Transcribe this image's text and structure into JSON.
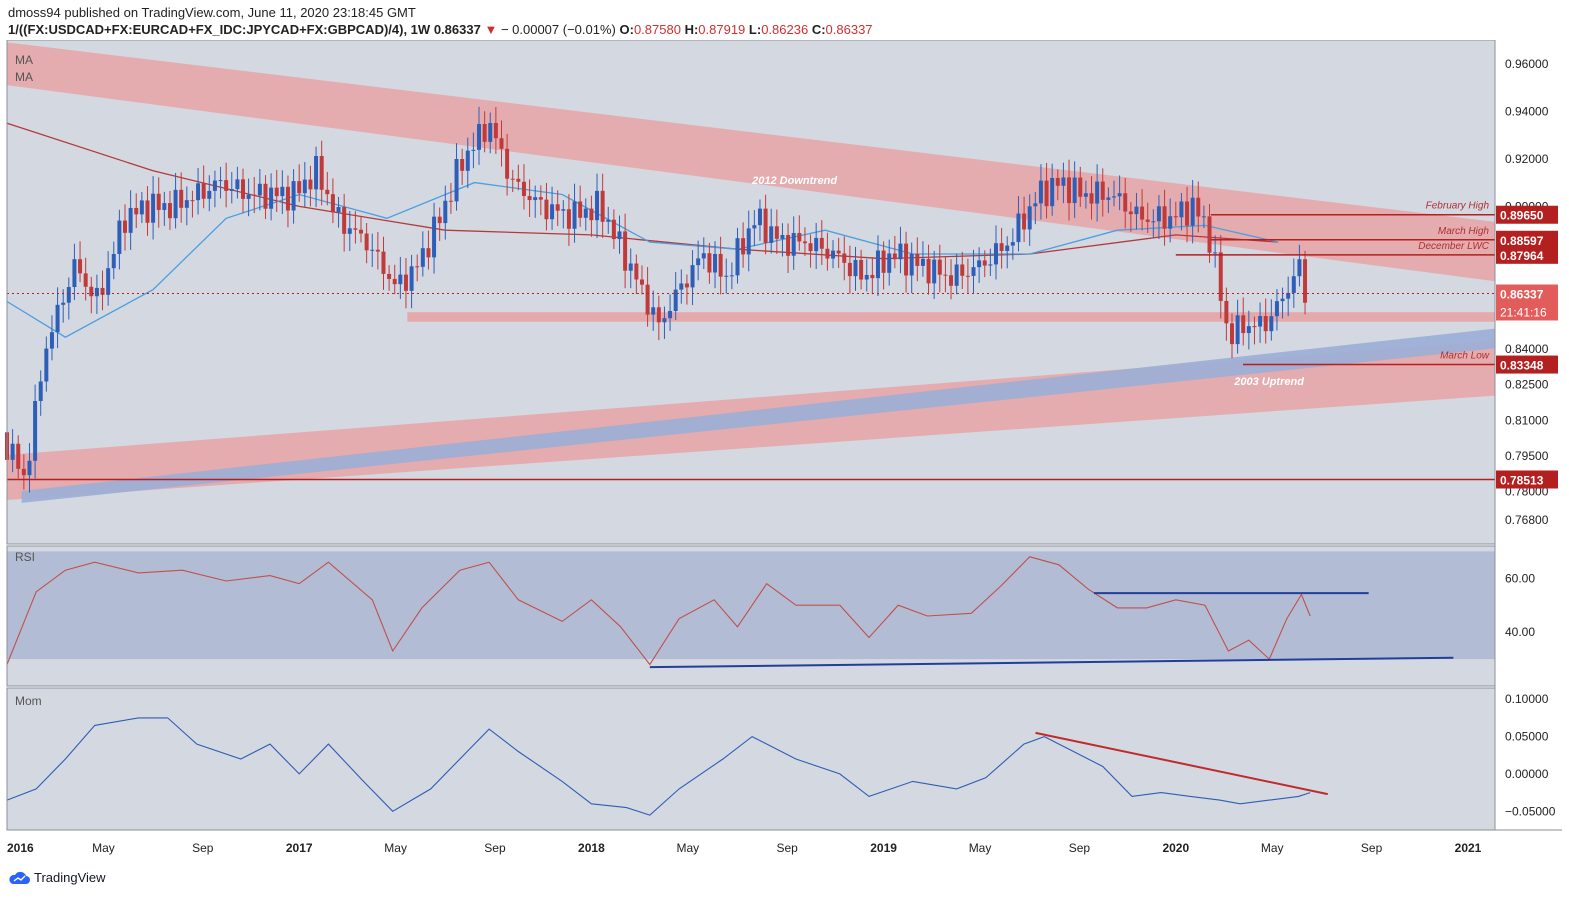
{
  "header": {
    "published": "dmoss94 published on TradingView.com, June 11, 2020 23:18:45 GMT",
    "symbol": "1/((FX:USDCAD+FX:EURCAD+FX_IDC:JPYCAD+FX:GBPCAD)/4), 1W",
    "last": "0.86337",
    "change": "− 0.00007 (−0.01%)",
    "o_label": "O:",
    "o_val": "0.87580",
    "h_label": "H:",
    "h_val": "0.87919",
    "l_label": "L:",
    "l_val": "0.86236",
    "c_label": "C:",
    "c_val": "0.86337"
  },
  "footer": {
    "brand": "TradingView"
  },
  "colors": {
    "bg": "#d4d8e1",
    "up": "#2e5fb8",
    "down": "#c13a3a",
    "ma200": "#b33a3a",
    "ma50": "#4a9fe0",
    "channel": "#e6a4a4",
    "uptrend_band": "#9aaed6",
    "level_line": "#b41f1f",
    "rsi": "#c0504d",
    "mom": "#2f5db5"
  },
  "chart_data": [
    {
      "type": "candlestick",
      "title": "",
      "ma_labels": [
        "MA",
        "MA"
      ],
      "x_ticks": [
        "2016",
        "May",
        "Sep",
        "2017",
        "May",
        "Sep",
        "2018",
        "May",
        "Sep",
        "2019",
        "May",
        "Sep",
        "2020",
        "May",
        "Sep",
        "2021"
      ],
      "y_ticks": [
        "0.96000",
        "0.94000",
        "0.92000",
        "0.90000",
        "0.88000",
        "0.86000",
        "0.84000",
        "0.82500",
        "0.81000",
        "0.79500",
        "0.78000",
        "0.76800"
      ],
      "ylim": [
        0.758,
        0.97
      ],
      "last_price": 0.86337,
      "countdown": "21:41:16",
      "levels": [
        {
          "value": 0.8965,
          "label": "0.89650",
          "name": "February High"
        },
        {
          "value": 0.88597,
          "label": "0.88597",
          "name": "March High"
        },
        {
          "value": 0.87964,
          "label": "0.87964",
          "name": "December LWC"
        },
        {
          "value": 0.83348,
          "label": "0.83348",
          "name": "March Low"
        },
        {
          "value": 0.78513,
          "label": "0.78513",
          "name": ""
        }
      ],
      "annotations": [
        "2012 Downtrend",
        "2003 Uptrend"
      ],
      "series": [
        {
          "name": "price",
          "points": [
            [
              2016.0,
              0.805
            ],
            [
              2016.08,
              0.785
            ],
            [
              2016.15,
              0.84
            ],
            [
              2016.25,
              0.875
            ],
            [
              2016.33,
              0.86
            ],
            [
              2016.42,
              0.895
            ],
            [
              2016.5,
              0.9
            ],
            [
              2016.58,
              0.9
            ],
            [
              2016.67,
              0.905
            ],
            [
              2016.75,
              0.91
            ],
            [
              2016.85,
              0.905
            ],
            [
              2017.0,
              0.905
            ],
            [
              2017.08,
              0.915
            ],
            [
              2017.15,
              0.895
            ],
            [
              2017.25,
              0.885
            ],
            [
              2017.35,
              0.866
            ],
            [
              2017.42,
              0.874
            ],
            [
              2017.5,
              0.895
            ],
            [
              2017.58,
              0.92
            ],
            [
              2017.67,
              0.935
            ],
            [
              2017.75,
              0.91
            ],
            [
              2017.85,
              0.9
            ],
            [
              2017.95,
              0.896
            ],
            [
              2018.05,
              0.9
            ],
            [
              2018.15,
              0.875
            ],
            [
              2018.25,
              0.85
            ],
            [
              2018.32,
              0.865
            ],
            [
              2018.4,
              0.88
            ],
            [
              2018.48,
              0.87
            ],
            [
              2018.58,
              0.895
            ],
            [
              2018.67,
              0.885
            ],
            [
              2018.75,
              0.885
            ],
            [
              2018.85,
              0.88
            ],
            [
              2018.95,
              0.87
            ],
            [
              2019.05,
              0.88
            ],
            [
              2019.15,
              0.875
            ],
            [
              2019.25,
              0.87
            ],
            [
              2019.35,
              0.875
            ],
            [
              2019.45,
              0.885
            ],
            [
              2019.55,
              0.905
            ],
            [
              2019.62,
              0.91
            ],
            [
              2019.7,
              0.905
            ],
            [
              2019.8,
              0.905
            ],
            [
              2019.9,
              0.895
            ],
            [
              2020.0,
              0.895
            ],
            [
              2020.08,
              0.9
            ],
            [
              2020.13,
              0.89
            ],
            [
              2020.2,
              0.845
            ],
            [
              2020.25,
              0.85
            ],
            [
              2020.32,
              0.85
            ],
            [
              2020.38,
              0.86
            ],
            [
              2020.44,
              0.875
            ],
            [
              2020.46,
              0.86337
            ]
          ]
        },
        {
          "name": "MA 200",
          "points": [
            [
              2016.0,
              0.935
            ],
            [
              2016.5,
              0.915
            ],
            [
              2017.0,
              0.9
            ],
            [
              2017.5,
              0.89
            ],
            [
              2018.0,
              0.888
            ],
            [
              2018.5,
              0.882
            ],
            [
              2019.0,
              0.878
            ],
            [
              2019.5,
              0.88
            ],
            [
              2020.0,
              0.888
            ],
            [
              2020.35,
              0.885
            ]
          ]
        },
        {
          "name": "MA 50",
          "points": [
            [
              2016.0,
              0.86
            ],
            [
              2016.2,
              0.845
            ],
            [
              2016.5,
              0.865
            ],
            [
              2016.75,
              0.895
            ],
            [
              2017.0,
              0.905
            ],
            [
              2017.3,
              0.895
            ],
            [
              2017.6,
              0.91
            ],
            [
              2017.9,
              0.905
            ],
            [
              2018.2,
              0.885
            ],
            [
              2018.5,
              0.882
            ],
            [
              2018.8,
              0.89
            ],
            [
              2019.1,
              0.88
            ],
            [
              2019.5,
              0.88
            ],
            [
              2019.8,
              0.89
            ],
            [
              2020.1,
              0.892
            ],
            [
              2020.35,
              0.885
            ]
          ]
        }
      ]
    },
    {
      "type": "line",
      "title": "RSI",
      "y_ticks": [
        "60.00",
        "40.00"
      ],
      "ylim": [
        20,
        72
      ],
      "band": [
        30,
        70
      ],
      "series": [
        {
          "name": "RSI",
          "points": [
            [
              2016.0,
              28
            ],
            [
              2016.1,
              55
            ],
            [
              2016.2,
              63
            ],
            [
              2016.3,
              66
            ],
            [
              2016.45,
              62
            ],
            [
              2016.6,
              63
            ],
            [
              2016.75,
              59
            ],
            [
              2016.9,
              61
            ],
            [
              2017.0,
              58
            ],
            [
              2017.1,
              66
            ],
            [
              2017.25,
              52
            ],
            [
              2017.32,
              33
            ],
            [
              2017.42,
              49
            ],
            [
              2017.55,
              63
            ],
            [
              2017.65,
              66
            ],
            [
              2017.75,
              52
            ],
            [
              2017.9,
              44
            ],
            [
              2018.0,
              52
            ],
            [
              2018.1,
              42
            ],
            [
              2018.2,
              28
            ],
            [
              2018.3,
              45
            ],
            [
              2018.42,
              52
            ],
            [
              2018.5,
              42
            ],
            [
              2018.6,
              58
            ],
            [
              2018.7,
              50
            ],
            [
              2018.85,
              50
            ],
            [
              2018.95,
              38
            ],
            [
              2019.05,
              50
            ],
            [
              2019.15,
              46
            ],
            [
              2019.3,
              47
            ],
            [
              2019.4,
              57
            ],
            [
              2019.5,
              68
            ],
            [
              2019.6,
              65
            ],
            [
              2019.7,
              56
            ],
            [
              2019.8,
              49
            ],
            [
              2019.9,
              49
            ],
            [
              2020.0,
              52
            ],
            [
              2020.1,
              50
            ],
            [
              2020.18,
              33
            ],
            [
              2020.25,
              37
            ],
            [
              2020.32,
              30
            ],
            [
              2020.38,
              45
            ],
            [
              2020.43,
              54
            ],
            [
              2020.46,
              46
            ]
          ]
        }
      ]
    },
    {
      "type": "line",
      "title": "Mom",
      "y_ticks": [
        "0.10000",
        "0.05000",
        "0.00000",
        "−0.05000"
      ],
      "ylim": [
        -0.075,
        0.115
      ],
      "series": [
        {
          "name": "Mom",
          "points": [
            [
              2016.0,
              -0.035
            ],
            [
              2016.1,
              -0.02
            ],
            [
              2016.2,
              0.02
            ],
            [
              2016.3,
              0.065
            ],
            [
              2016.45,
              0.075
            ],
            [
              2016.55,
              0.075
            ],
            [
              2016.65,
              0.04
            ],
            [
              2016.8,
              0.02
            ],
            [
              2016.9,
              0.04
            ],
            [
              2017.0,
              0.0
            ],
            [
              2017.1,
              0.04
            ],
            [
              2017.22,
              -0.01
            ],
            [
              2017.32,
              -0.05
            ],
            [
              2017.45,
              -0.02
            ],
            [
              2017.55,
              0.02
            ],
            [
              2017.65,
              0.06
            ],
            [
              2017.75,
              0.03
            ],
            [
              2017.9,
              -0.01
            ],
            [
              2018.0,
              -0.04
            ],
            [
              2018.12,
              -0.045
            ],
            [
              2018.2,
              -0.055
            ],
            [
              2018.3,
              -0.02
            ],
            [
              2018.45,
              0.02
            ],
            [
              2018.55,
              0.05
            ],
            [
              2018.7,
              0.02
            ],
            [
              2018.85,
              0.0
            ],
            [
              2018.95,
              -0.03
            ],
            [
              2019.1,
              -0.01
            ],
            [
              2019.25,
              -0.02
            ],
            [
              2019.35,
              -0.005
            ],
            [
              2019.48,
              0.04
            ],
            [
              2019.55,
              0.05
            ],
            [
              2019.65,
              0.03
            ],
            [
              2019.75,
              0.01
            ],
            [
              2019.85,
              -0.03
            ],
            [
              2019.95,
              -0.025
            ],
            [
              2020.05,
              -0.03
            ],
            [
              2020.15,
              -0.035
            ],
            [
              2020.22,
              -0.04
            ],
            [
              2020.32,
              -0.035
            ],
            [
              2020.42,
              -0.03
            ],
            [
              2020.46,
              -0.025
            ]
          ]
        }
      ]
    }
  ]
}
